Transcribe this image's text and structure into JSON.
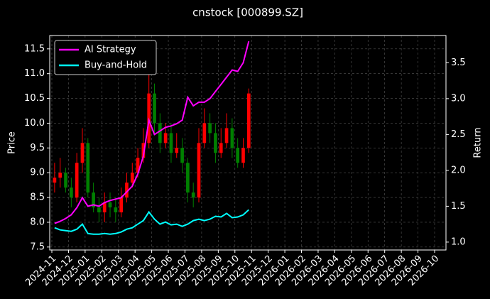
{
  "chart_data": {
    "type": "candlestick",
    "title": "cnstock [000899.SZ]",
    "y_label": "Price",
    "y2_label": "Return",
    "x": [
      "2024-11",
      "2024-11",
      "2024-11",
      "2024-12",
      "2024-12",
      "2024-12",
      "2025-01",
      "2025-01",
      "2025-01",
      "2025-02",
      "2025-02",
      "2025-02",
      "2025-03",
      "2025-03",
      "2025-03",
      "2025-04",
      "2025-04",
      "2025-04",
      "2025-05",
      "2025-05",
      "2025-05",
      "2025-06",
      "2025-06",
      "2025-06",
      "2025-07",
      "2025-07",
      "2025-07",
      "2025-08",
      "2025-08",
      "2025-08",
      "2025-09",
      "2025-09",
      "2025-09",
      "2025-10",
      "2025-10",
      "2025-10"
    ],
    "open": [
      8.8,
      8.9,
      9.0,
      8.7,
      8.5,
      9.2,
      9.6,
      8.6,
      8.3,
      8.2,
      8.4,
      8.3,
      8.2,
      8.5,
      8.8,
      9.0,
      9.3,
      9.6,
      10.6,
      10.0,
      9.6,
      9.8,
      9.4,
      9.5,
      9.2,
      8.6,
      8.5,
      9.6,
      10.0,
      9.8,
      9.4,
      9.6,
      9.9,
      9.5,
      9.2,
      9.5
    ],
    "high": [
      9.2,
      9.3,
      9.1,
      8.9,
      9.4,
      9.9,
      9.7,
      8.8,
      8.5,
      8.6,
      8.6,
      8.5,
      8.7,
      9.0,
      9.2,
      9.5,
      9.9,
      11.2,
      10.8,
      10.2,
      10.0,
      10.0,
      9.8,
      9.7,
      9.3,
      8.8,
      9.9,
      10.3,
      10.2,
      10.0,
      9.9,
      10.2,
      10.1,
      9.7,
      9.7,
      10.7
    ],
    "low": [
      8.6,
      8.7,
      8.6,
      8.3,
      8.4,
      9.0,
      8.5,
      8.2,
      8.0,
      8.0,
      8.1,
      8.0,
      8.1,
      8.4,
      8.7,
      8.9,
      9.2,
      9.5,
      9.8,
      9.4,
      9.5,
      9.2,
      9.3,
      9.0,
      8.4,
      8.3,
      8.4,
      9.5,
      9.6,
      9.2,
      9.3,
      9.5,
      9.3,
      9.1,
      9.1,
      9.4
    ],
    "close": [
      8.9,
      9.0,
      8.7,
      8.5,
      9.2,
      9.6,
      8.6,
      8.3,
      8.2,
      8.4,
      8.3,
      8.2,
      8.5,
      8.8,
      9.0,
      9.3,
      9.6,
      10.6,
      10.0,
      9.6,
      9.8,
      9.4,
      9.5,
      9.2,
      8.6,
      8.5,
      9.6,
      10.0,
      9.8,
      9.4,
      9.6,
      9.9,
      9.5,
      9.2,
      9.5,
      10.6
    ],
    "up_color": "#ff0000",
    "down_color": "#008000",
    "series": [
      {
        "name": "AI Strategy",
        "color": "#ff00ff",
        "axis": "y2",
        "values": [
          1.26,
          1.29,
          1.33,
          1.38,
          1.48,
          1.62,
          1.5,
          1.52,
          1.5,
          1.55,
          1.58,
          1.6,
          1.62,
          1.7,
          1.78,
          1.95,
          2.2,
          2.7,
          2.5,
          2.55,
          2.6,
          2.62,
          2.65,
          2.7,
          3.02,
          2.9,
          2.95,
          2.95,
          3.0,
          3.1,
          3.2,
          3.3,
          3.4,
          3.38,
          3.5,
          3.8
        ]
      },
      {
        "name": "Buy-and-Hold",
        "color": "#00ffff",
        "axis": "y2",
        "values": [
          1.2,
          1.17,
          1.16,
          1.15,
          1.18,
          1.25,
          1.12,
          1.11,
          1.11,
          1.12,
          1.11,
          1.12,
          1.14,
          1.18,
          1.2,
          1.25,
          1.3,
          1.42,
          1.32,
          1.25,
          1.28,
          1.24,
          1.25,
          1.22,
          1.25,
          1.3,
          1.32,
          1.3,
          1.32,
          1.36,
          1.35,
          1.4,
          1.34,
          1.35,
          1.38,
          1.45
        ]
      }
    ],
    "xlim": [
      "2024-11",
      "2026-10"
    ],
    "xticks": [
      "2024-11",
      "2024-12",
      "2025-01",
      "2025-02",
      "2025-03",
      "2025-04",
      "2025-05",
      "2025-06",
      "2025-07",
      "2025-08",
      "2025-09",
      "2025-10",
      "2025-11",
      "2025-12",
      "2026-01",
      "2026-02",
      "2026-03",
      "2026-04",
      "2026-05",
      "2026-06",
      "2026-07",
      "2026-08",
      "2026-09",
      "2026-10"
    ],
    "ylim": [
      7.44,
      11.77
    ],
    "yticks": [
      7.5,
      {
        "value": 8,
        "label": "8.0"
      },
      8.5,
      {
        "value": 9,
        "label": "9.0"
      },
      9.5,
      {
        "value": 10,
        "label": "10.0"
      },
      10.5,
      {
        "value": 11,
        "label": "11.0"
      },
      11.5
    ],
    "y2lim": [
      0.89,
      3.88
    ],
    "y2ticks": [
      {
        "value": 1,
        "label": "1.0"
      },
      1.5,
      {
        "value": 2,
        "label": "2.0"
      },
      2.5,
      {
        "value": 3,
        "label": "3.0"
      },
      3.5
    ],
    "grid": true,
    "legend": "upper left"
  }
}
